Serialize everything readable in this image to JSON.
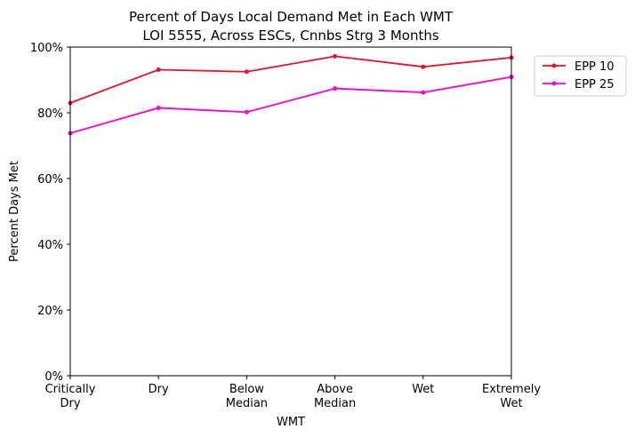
{
  "chart_data": {
    "type": "line",
    "title_lines": [
      "Percent of Days Local Demand Met in Each WMT",
      "LOI 5555, Across ESCs, Cnnbs Strg 3 Months"
    ],
    "xlabel": "WMT",
    "ylabel": "Percent Days Met",
    "categories": [
      [
        "Critically",
        "Dry"
      ],
      [
        "Dry"
      ],
      [
        "Below",
        "Median"
      ],
      [
        "Above",
        "Median"
      ],
      [
        "Wet"
      ],
      [
        "Extremely",
        "Wet"
      ]
    ],
    "ylim": [
      0,
      1
    ],
    "yticks": [
      {
        "value": 0.0,
        "label": "0%"
      },
      {
        "value": 0.2,
        "label": "20%"
      },
      {
        "value": 0.4,
        "label": "40%"
      },
      {
        "value": 0.6,
        "label": "60%"
      },
      {
        "value": 0.8,
        "label": "80%"
      },
      {
        "value": 1.0,
        "label": "100%"
      }
    ],
    "grid": false,
    "legend_position": "outside-top-right",
    "series": [
      {
        "name": "EPP 10",
        "color": "#e8102a",
        "values": [
          0.83,
          0.931,
          0.925,
          0.972,
          0.94,
          0.968
        ]
      },
      {
        "name": "EPP 25",
        "color": "#ff00cc",
        "values": [
          0.738,
          0.815,
          0.802,
          0.874,
          0.862,
          0.909
        ]
      }
    ]
  }
}
